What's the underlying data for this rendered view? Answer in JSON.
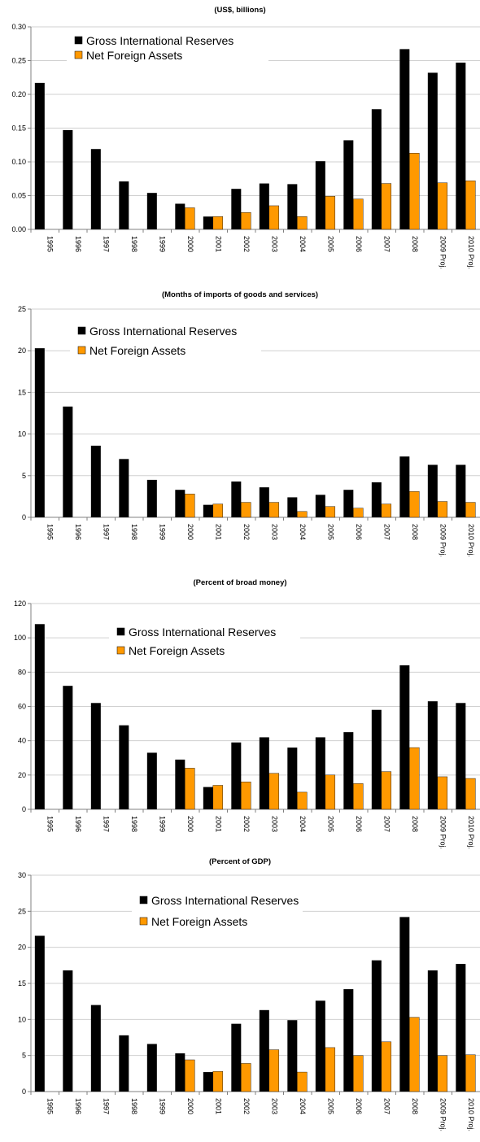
{
  "colors": {
    "gross": "#000000",
    "net": "#ff9900",
    "axis": "#808080",
    "grid": "#d0d0d0"
  },
  "chart_data": [
    {
      "type": "bar",
      "title": "(US$, billions)",
      "categories": [
        "1995",
        "1996",
        "1997",
        "1998",
        "1999",
        "2000",
        "2001",
        "2002",
        "2003",
        "2004",
        "2005",
        "2006",
        "2007",
        "2008",
        "2009 Proj.",
        "2010 Proj."
      ],
      "ylim": [
        0,
        0.3
      ],
      "yticks": [
        "0.00",
        "0.05",
        "0.10",
        "0.15",
        "0.20",
        "0.25",
        "0.30"
      ],
      "grid": true,
      "legend_position": "top-left",
      "series": [
        {
          "name": "Gross International Reserves",
          "values": [
            0.217,
            0.147,
            0.119,
            0.071,
            0.054,
            0.038,
            0.019,
            0.06,
            0.068,
            0.067,
            0.101,
            0.132,
            0.178,
            0.267,
            0.232,
            0.247
          ]
        },
        {
          "name": "Net Foreign Assets",
          "values": [
            null,
            null,
            null,
            null,
            null,
            0.032,
            0.019,
            0.025,
            0.035,
            0.019,
            0.049,
            0.045,
            0.068,
            0.113,
            0.069,
            0.072
          ]
        }
      ]
    },
    {
      "type": "bar",
      "title": "(Months of imports of goods and services)",
      "categories": [
        "1995",
        "1996",
        "1997",
        "1998",
        "1999",
        "2000",
        "2001",
        "2002",
        "2003",
        "2004",
        "2005",
        "2006",
        "2007",
        "2008",
        "2009 Proj.",
        "2010 Proj."
      ],
      "ylim": [
        0,
        25
      ],
      "yticks": [
        "0",
        "5",
        "10",
        "15",
        "20",
        "25"
      ],
      "grid": true,
      "legend_position": "top-left",
      "series": [
        {
          "name": "Gross International Reserves",
          "values": [
            20.3,
            13.3,
            8.6,
            7.0,
            4.5,
            3.3,
            1.5,
            4.3,
            3.6,
            2.4,
            2.7,
            3.3,
            4.2,
            7.3,
            6.3,
            6.3
          ]
        },
        {
          "name": "Net Foreign Assets",
          "values": [
            null,
            null,
            null,
            null,
            null,
            2.8,
            1.6,
            1.8,
            1.8,
            0.7,
            1.3,
            1.1,
            1.6,
            3.1,
            1.9,
            1.8
          ]
        }
      ]
    },
    {
      "type": "bar",
      "title": "(Percent of broad money)",
      "categories": [
        "1995",
        "1996",
        "1997",
        "1998",
        "1999",
        "2000",
        "2001",
        "2002",
        "2003",
        "2004",
        "2005",
        "2006",
        "2007",
        "2008",
        "2009 Proj.",
        "2010 Proj."
      ],
      "ylim": [
        0,
        120
      ],
      "yticks": [
        "0",
        "20",
        "40",
        "60",
        "80",
        "100",
        "120"
      ],
      "grid": true,
      "legend_position": "top-center",
      "series": [
        {
          "name": "Gross International Reserves",
          "values": [
            108,
            72,
            62,
            49,
            33,
            29,
            13,
            39,
            42,
            36,
            42,
            45,
            58,
            84,
            63,
            62
          ]
        },
        {
          "name": "Net Foreign Assets",
          "values": [
            null,
            null,
            null,
            null,
            null,
            24,
            14,
            16,
            21,
            10,
            20,
            15,
            22,
            36,
            19,
            18
          ]
        }
      ]
    },
    {
      "type": "bar",
      "title": "(Percent of GDP)",
      "categories": [
        "1995",
        "1996",
        "1997",
        "1998",
        "1999",
        "2000",
        "2001",
        "2002",
        "2003",
        "2004",
        "2005",
        "2006",
        "2007",
        "2008",
        "2009 Proj.",
        "2010 Proj."
      ],
      "ylim": [
        0,
        30
      ],
      "yticks": [
        "0",
        "5",
        "10",
        "15",
        "20",
        "25",
        "30"
      ],
      "grid": true,
      "legend_position": "top-center",
      "series": [
        {
          "name": "Gross International Reserves",
          "values": [
            21.6,
            16.8,
            12.0,
            7.8,
            6.6,
            5.3,
            2.7,
            9.4,
            11.3,
            9.9,
            12.6,
            14.2,
            18.2,
            24.2,
            16.8,
            17.7
          ]
        },
        {
          "name": "Net Foreign Assets",
          "values": [
            null,
            null,
            null,
            null,
            null,
            4.4,
            2.8,
            3.9,
            5.8,
            2.7,
            6.1,
            5.0,
            6.9,
            10.3,
            5.0,
            5.1
          ]
        }
      ]
    }
  ]
}
